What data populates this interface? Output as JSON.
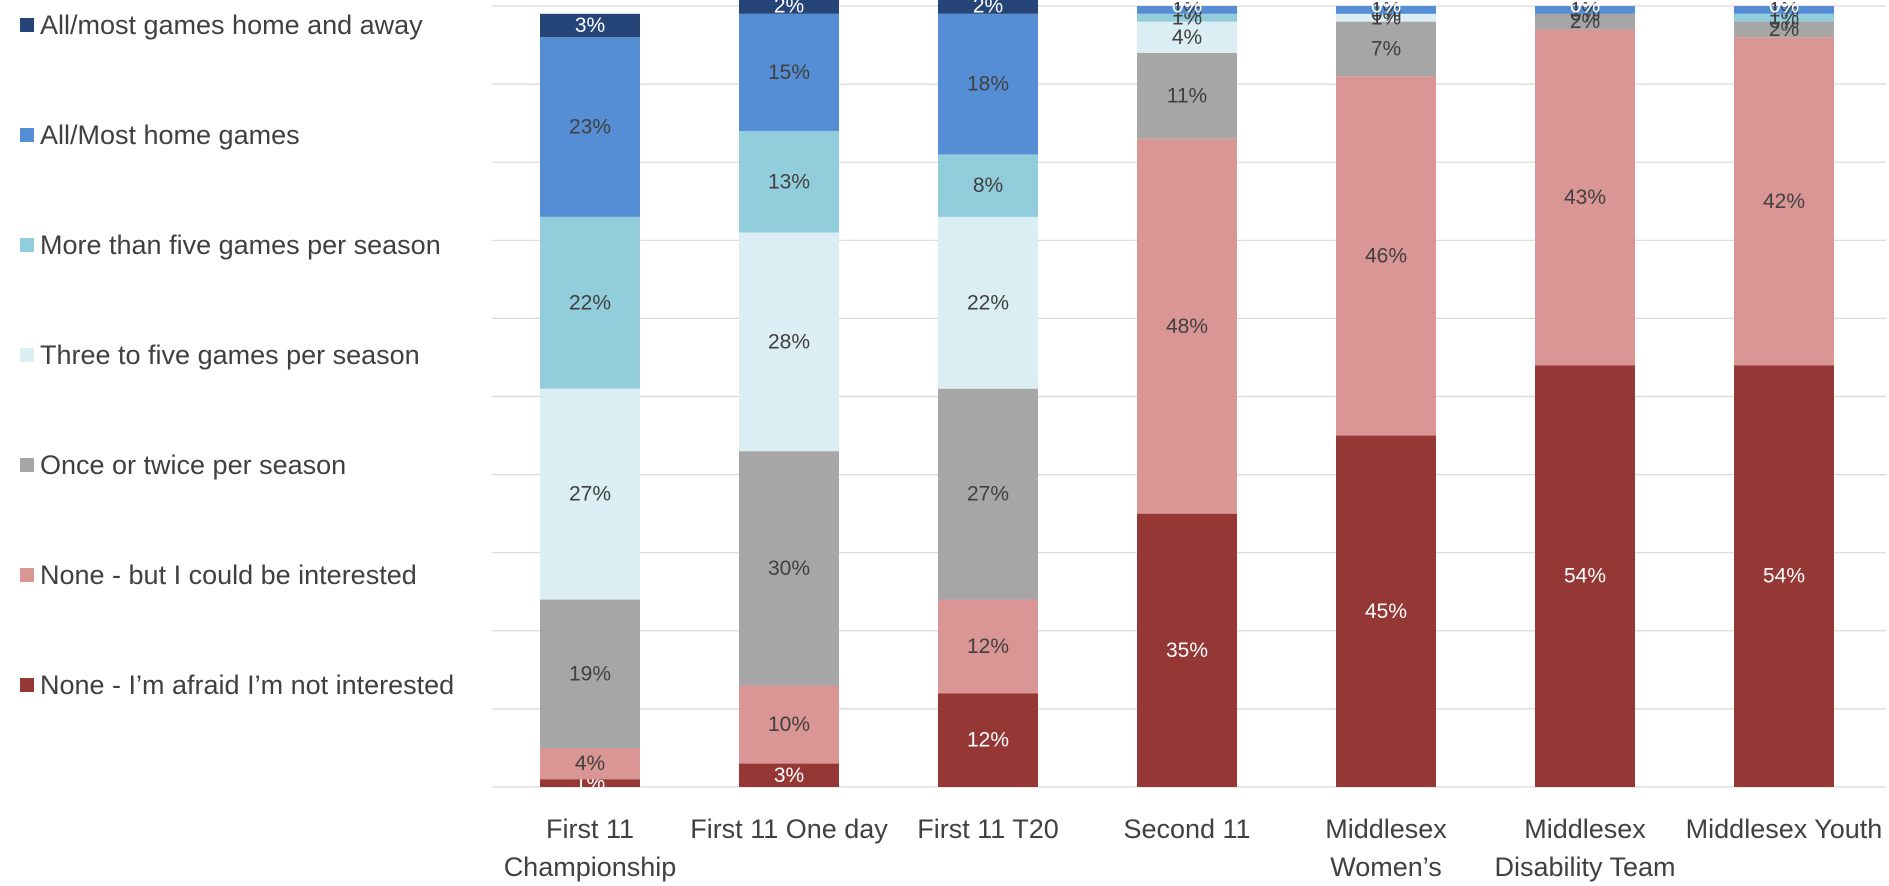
{
  "chart_data": {
    "type": "stacked_bar",
    "categories": [
      "First 11 Championship",
      "First 11 One day",
      "First 11 T20",
      "Second 11",
      "Middlesex Women’s",
      "Middlesex Disability Team",
      "Middlesex Youth"
    ],
    "series": [
      {
        "name": "None - I’m afraid I’m not interested",
        "color": "#953735",
        "values": [
          1,
          3,
          12,
          35,
          45,
          54,
          54
        ],
        "value_labels": [
          "1%",
          "3%",
          "12%",
          "35%",
          "45%",
          "54%",
          "54%"
        ]
      },
      {
        "name": "None - but I could be interested",
        "color": "#da9694",
        "values": [
          4,
          10,
          12,
          48,
          46,
          43,
          42
        ],
        "value_labels": [
          "4%",
          "10%",
          "12%",
          "48%",
          "46%",
          "43%",
          "42%"
        ]
      },
      {
        "name": "Once or twice per season",
        "color": "#a6a6a6",
        "values": [
          19,
          30,
          27,
          11,
          7,
          2,
          2
        ],
        "value_labels": [
          "19%",
          "30%",
          "27%",
          "11%",
          "7%",
          "2%",
          "2%"
        ]
      },
      {
        "name": "Three to five games per season",
        "color": "#daeef3",
        "values": [
          27,
          28,
          22,
          4,
          1,
          0,
          0
        ],
        "value_labels": [
          "27%",
          "28%",
          "22%",
          "4%",
          "1%",
          "0%",
          "0%"
        ]
      },
      {
        "name": "More than five games per season",
        "color": "#92cddc",
        "values": [
          22,
          13,
          8,
          1,
          0,
          0,
          1
        ],
        "value_labels": [
          "22%",
          "13%",
          "8%",
          "1%",
          "0%",
          "0%",
          "1%"
        ]
      },
      {
        "name": "All/Most home games",
        "color": "#558ed5",
        "values": [
          23,
          15,
          18,
          1,
          1,
          1,
          1
        ],
        "value_labels": [
          "23%",
          "15%",
          "18%",
          "1%",
          "1%",
          "1%",
          "1%"
        ]
      },
      {
        "name": "All/most games home and away",
        "color": "#254478",
        "values": [
          3,
          2,
          2,
          0,
          0,
          0,
          0
        ],
        "value_labels": [
          "3%",
          "2%",
          "2%",
          "0%",
          "0%",
          "0%",
          "0%"
        ]
      }
    ],
    "ylim": [
      0,
      100
    ],
    "yticks": [
      0,
      10,
      20,
      30,
      40,
      50,
      60,
      70,
      80,
      90,
      100
    ],
    "grid": true,
    "legend": "left"
  }
}
